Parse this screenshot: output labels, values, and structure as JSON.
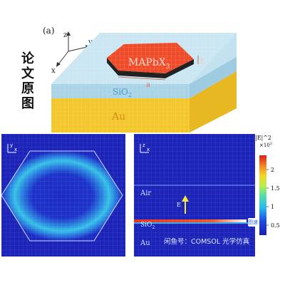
{
  "figure": {
    "side_title_chars": [
      "论",
      "文",
      "原",
      "图"
    ],
    "panel_a": {
      "label": "(a)",
      "axes": {
        "x": "x",
        "y": "y",
        "z": "z"
      },
      "layers": {
        "crystal": "MAPbX",
        "crystal_subscript": "3",
        "thickness": "t",
        "edge": "a",
        "substrate": "SiO",
        "substrate_subscript": "2",
        "metal": "Au"
      }
    },
    "bottom_left": {
      "axes": {
        "x": "x",
        "y": "y"
      }
    },
    "bottom_right": {
      "axes": {
        "x": "x",
        "z": "z"
      },
      "labels": {
        "air": "Air",
        "e_arrow": "E",
        "sio2": "SiO",
        "sio2_sub": "2",
        "au": "Au"
      }
    },
    "colorbar": {
      "title": "|E|^2",
      "exponent": "×10",
      "exponent_power": "3",
      "ticks": [
        "2",
        "1.5",
        "1",
        "0.5"
      ]
    },
    "watermark": {
      "text": "闲鱼号：COMSOL 光学仿真",
      "badge": "图速"
    }
  },
  "colors": {
    "gold": "#f2c328",
    "glass": "#b8dcec",
    "crystal": "#ee4c2a",
    "field_bg": "#1c22b8",
    "field_hot": "#e83020"
  }
}
